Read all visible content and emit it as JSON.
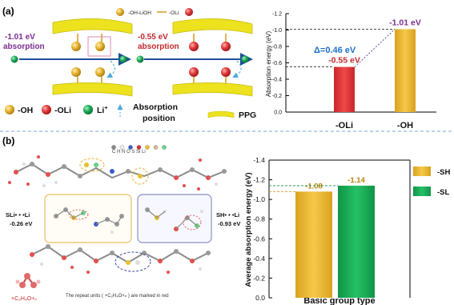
{
  "figure": {
    "panel_a_label": "(a)",
    "panel_b_label": "(b)",
    "colors": {
      "oh_gold": "#e8b230",
      "oli_red": "#e03a3a",
      "li_green": "#1aaa55",
      "ppg_yellow": "#ece21e",
      "arrow_blue": "#1e4f9a",
      "delta_blue": "#1e6fc8",
      "purple": "#7b2c8f",
      "dark_red": "#c0282d",
      "dashed_divider": "#7aa6d6"
    },
    "schematic": {
      "left_energy": "-1.01 eV",
      "left_label": "absorption",
      "right_energy": "-0.55 eV",
      "right_label": "absorption",
      "box_legend_oh": "-OH-LiOH",
      "box_legend_oli": "-OLi"
    },
    "legend_a": {
      "oh": "-OH",
      "oli": "-OLi",
      "li": "Li",
      "li_sup": "+",
      "absorption_position_line1": "Absorption",
      "absorption_position_line2": "position",
      "ppg": "PPG"
    },
    "molecule": {
      "atom_legend": "C  H  N  O  S  Si  Li",
      "left_label_line1": "SLi• • •Li",
      "left_label_line2": "-0.26 eV",
      "right_label_line1": "SH• • •Li",
      "right_label_line2": "-0.93 eV",
      "repeat_unit_formula": "+C₂H₄O+ₙ",
      "caption": "The repeat units ( +C₂H₄O+ₙ ) are marked in red"
    }
  },
  "chart_data": [
    {
      "type": "bar",
      "categories": [
        "-OLi",
        "-OH"
      ],
      "values": [
        -0.55,
        -1.01
      ],
      "value_labels": [
        "-0.55 eV",
        "-1.01 eV"
      ],
      "colors": [
        "#e03a3a",
        "#e8b230"
      ],
      "ylabel": "Absorption energy (eV)",
      "ylim": [
        0,
        -1.2
      ],
      "yticks": [
        0.0,
        -0.2,
        -0.4,
        -0.6,
        -0.8,
        -1.0,
        -1.2
      ],
      "ytick_labels": [
        "0.0",
        "-0.2",
        "-0.4",
        "-0.6",
        "-0.8",
        "-1.0",
        "-1.2"
      ],
      "annotation": "Δ=0.46 eV",
      "grid": false
    },
    {
      "type": "bar",
      "categories": [
        "-SH",
        "-SLi"
      ],
      "values": [
        -1.08,
        -1.14
      ],
      "value_labels": [
        "-1.08",
        "-1.14"
      ],
      "colors": [
        "#e8b230",
        "#1aaa55"
      ],
      "xlabel": "Basic group type",
      "ylabel": "Average absorption energy (eV)",
      "ylim": [
        0,
        -1.4
      ],
      "yticks": [
        0.0,
        -0.2,
        -0.4,
        -0.6,
        -0.8,
        -1.0,
        -1.2,
        -1.4
      ],
      "ytick_labels": [
        "0.0",
        "-0.2",
        "-0.4",
        "-0.6",
        "-0.8",
        "-1.0",
        "-1.2",
        "-1.4"
      ],
      "legend": [
        "-SH",
        "-SL"
      ],
      "legend_position": "top-right",
      "grid": false
    }
  ]
}
